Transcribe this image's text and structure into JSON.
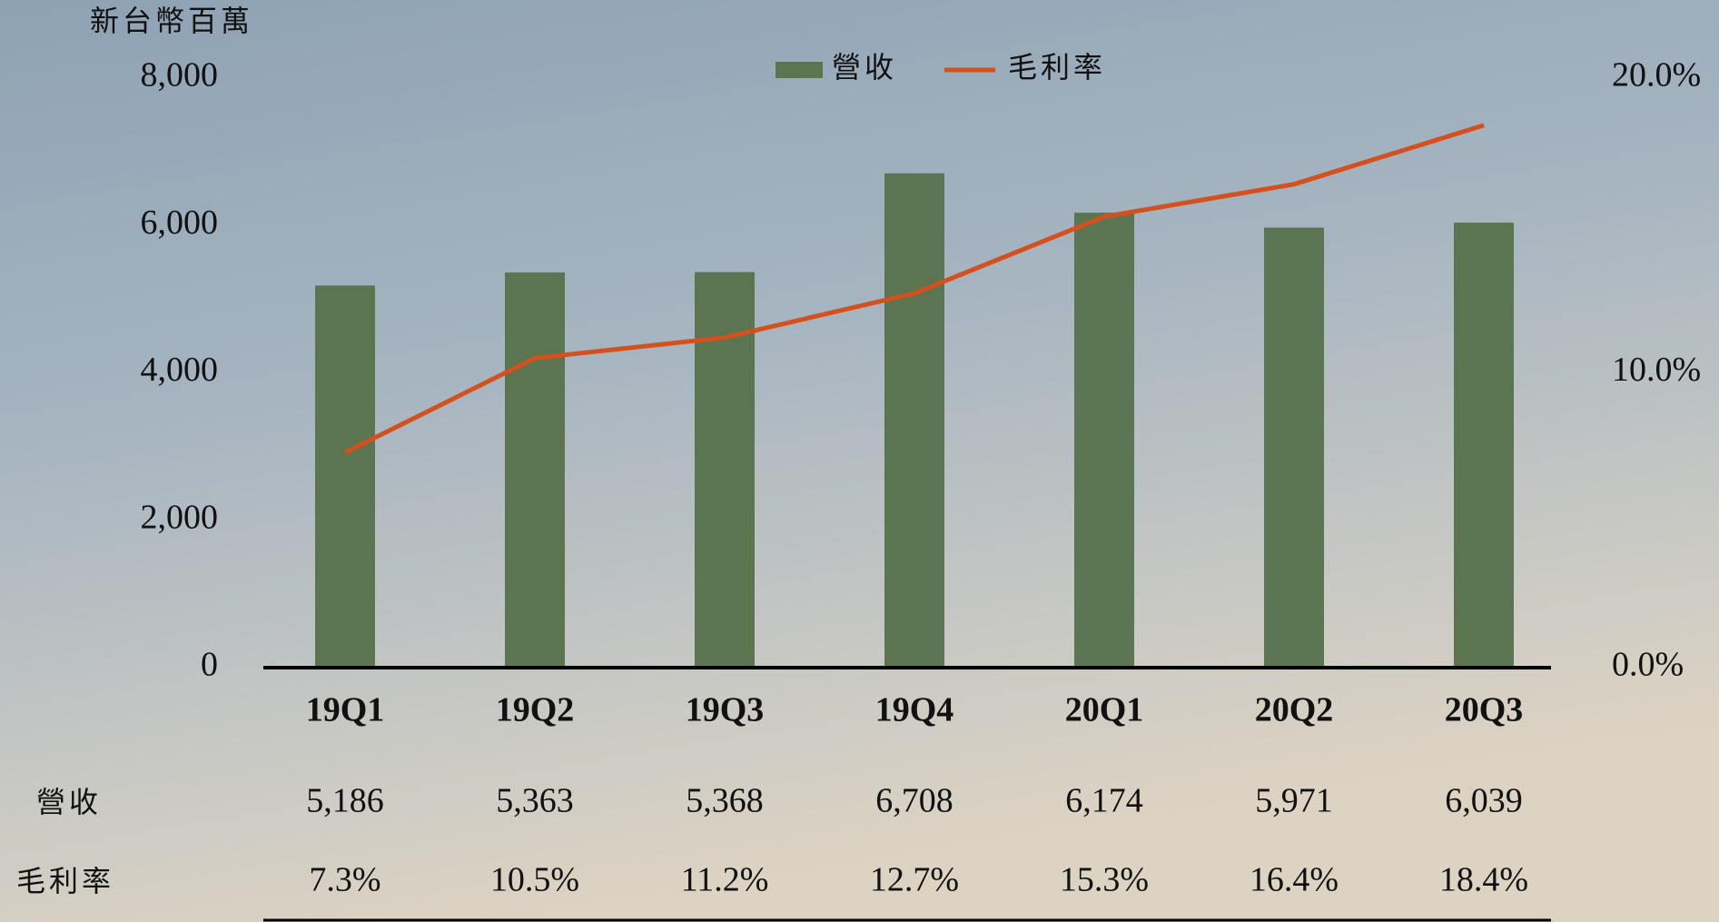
{
  "chart_data": {
    "type": "bar",
    "y_axis_label": "新台幣百萬",
    "categories": [
      "19Q1",
      "19Q2",
      "19Q3",
      "19Q4",
      "20Q1",
      "20Q2",
      "20Q3"
    ],
    "series": [
      {
        "name": "營收",
        "color": "#5a7550",
        "values": [
          5186,
          5363,
          5368,
          6708,
          6174,
          5971,
          6039
        ],
        "value_labels": [
          "5,186",
          "5,363",
          "5,368",
          "6,708",
          "6,174",
          "5,971",
          "6,039"
        ]
      },
      {
        "name": "毛利率",
        "type": "line",
        "axis": "y2",
        "color": "#d4501c",
        "values": [
          7.3,
          10.5,
          11.2,
          12.7,
          15.3,
          16.4,
          18.4
        ],
        "value_labels": [
          "7.3%",
          "10.5%",
          "11.2%",
          "12.7%",
          "15.3%",
          "16.4%",
          "18.4%"
        ]
      }
    ],
    "ylim": [
      0,
      8000
    ],
    "yticks": [
      0,
      {
        "value": 2000,
        "label": "2,000"
      },
      {
        "value": 4000,
        "label": "4,000"
      },
      {
        "value": 6000,
        "label": "6,000"
      },
      {
        "value": 8000,
        "label": "8,000"
      }
    ],
    "y2lim": [
      0,
      20
    ],
    "y2ticks": [
      {
        "value": 0,
        "label": "0.0%"
      },
      {
        "value": 10,
        "label": "10.0%"
      },
      {
        "value": 20,
        "label": "20.0%"
      }
    ]
  }
}
